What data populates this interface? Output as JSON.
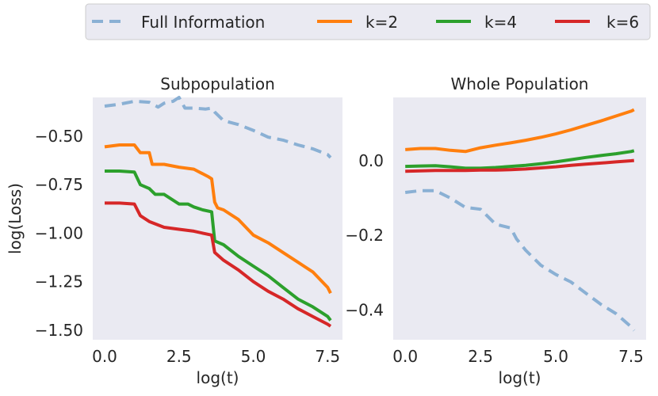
{
  "chart_data": [
    {
      "type": "line",
      "title": "Subpopulation",
      "xlabel": "log(t)",
      "ylabel": "log(Loss)",
      "xlim": [
        -0.4,
        8.0
      ],
      "ylim": [
        -1.55,
        -0.3
      ],
      "xticks": [
        0.0,
        2.5,
        5.0,
        7.5
      ],
      "xtick_labels": [
        "0.0",
        "2.5",
        "5.0",
        "7.5"
      ],
      "yticks": [
        -0.5,
        -0.75,
        -1.0,
        -1.25,
        -1.5
      ],
      "ytick_labels": [
        "−0.50",
        "−0.75",
        "−1.00",
        "−1.25",
        "−1.50"
      ],
      "grid": false,
      "series": [
        {
          "name": "Full Information",
          "color": "#8ab0d4",
          "dash": "dashed",
          "x": [
            0.0,
            0.5,
            1.0,
            1.5,
            1.8,
            2.0,
            2.3,
            2.5,
            2.7,
            3.0,
            3.4,
            3.6,
            3.7,
            4.0,
            4.5,
            5.0,
            5.5,
            6.0,
            6.5,
            7.0,
            7.5,
            7.6
          ],
          "y": [
            -0.345,
            -0.335,
            -0.32,
            -0.325,
            -0.35,
            -0.33,
            -0.32,
            -0.3,
            -0.355,
            -0.355,
            -0.36,
            -0.355,
            -0.375,
            -0.42,
            -0.44,
            -0.47,
            -0.505,
            -0.52,
            -0.545,
            -0.565,
            -0.595,
            -0.61
          ]
        },
        {
          "name": "k=2",
          "color": "#ff7f0e",
          "dash": "solid",
          "x": [
            0.0,
            0.5,
            1.0,
            1.2,
            1.5,
            1.6,
            2.0,
            2.5,
            3.0,
            3.5,
            3.6,
            3.7,
            3.8,
            4.0,
            4.5,
            5.0,
            5.5,
            6.0,
            6.5,
            7.0,
            7.5,
            7.6
          ],
          "y": [
            -0.555,
            -0.545,
            -0.545,
            -0.585,
            -0.585,
            -0.645,
            -0.645,
            -0.66,
            -0.67,
            -0.71,
            -0.72,
            -0.84,
            -0.87,
            -0.88,
            -0.93,
            -1.01,
            -1.05,
            -1.1,
            -1.15,
            -1.2,
            -1.28,
            -1.31
          ]
        },
        {
          "name": "k=4",
          "color": "#2ca02c",
          "dash": "solid",
          "x": [
            0.0,
            0.5,
            1.0,
            1.2,
            1.5,
            1.7,
            2.0,
            2.5,
            2.8,
            3.0,
            3.3,
            3.6,
            3.7,
            4.0,
            4.5,
            5.0,
            5.5,
            6.0,
            6.5,
            7.0,
            7.5,
            7.6
          ],
          "y": [
            -0.68,
            -0.68,
            -0.685,
            -0.75,
            -0.77,
            -0.8,
            -0.8,
            -0.85,
            -0.85,
            -0.865,
            -0.88,
            -0.89,
            -1.04,
            -1.06,
            -1.12,
            -1.17,
            -1.22,
            -1.28,
            -1.34,
            -1.38,
            -1.43,
            -1.45
          ]
        },
        {
          "name": "k=6",
          "color": "#d62728",
          "dash": "solid",
          "x": [
            0.0,
            0.5,
            1.0,
            1.2,
            1.5,
            2.0,
            2.5,
            3.0,
            3.3,
            3.6,
            3.7,
            4.0,
            4.5,
            5.0,
            5.5,
            6.0,
            6.5,
            7.0,
            7.5,
            7.6
          ],
          "y": [
            -0.845,
            -0.845,
            -0.85,
            -0.91,
            -0.94,
            -0.97,
            -0.98,
            -0.99,
            -1.0,
            -1.01,
            -1.1,
            -1.14,
            -1.19,
            -1.25,
            -1.3,
            -1.34,
            -1.39,
            -1.43,
            -1.47,
            -1.48
          ]
        }
      ]
    },
    {
      "type": "line",
      "title": "Whole Population",
      "xlabel": "log(t)",
      "ylabel": "",
      "xlim": [
        -0.4,
        8.0
      ],
      "ylim": [
        -0.48,
        0.17
      ],
      "xticks": [
        0.0,
        2.5,
        5.0,
        7.5
      ],
      "xtick_labels": [
        "0.0",
        "2.5",
        "5.0",
        "7.5"
      ],
      "yticks": [
        0.0,
        -0.2,
        -0.4
      ],
      "ytick_labels": [
        "0.0",
        "−0.2",
        "−0.4"
      ],
      "grid": false,
      "series": [
        {
          "name": "Full Information",
          "color": "#8ab0d4",
          "dash": "dashed",
          "x": [
            0.0,
            0.5,
            1.0,
            1.5,
            2.0,
            2.5,
            3.0,
            3.5,
            3.7,
            4.0,
            4.5,
            5.0,
            5.5,
            6.0,
            6.5,
            7.0,
            7.5,
            7.6
          ],
          "y": [
            -0.085,
            -0.08,
            -0.08,
            -0.1,
            -0.125,
            -0.13,
            -0.17,
            -0.18,
            -0.21,
            -0.24,
            -0.28,
            -0.305,
            -0.325,
            -0.355,
            -0.385,
            -0.41,
            -0.445,
            -0.455
          ]
        },
        {
          "name": "k=2",
          "color": "#ff7f0e",
          "dash": "solid",
          "x": [
            0.0,
            0.5,
            1.0,
            1.5,
            2.0,
            2.5,
            3.0,
            3.5,
            4.0,
            4.5,
            5.0,
            5.5,
            6.0,
            6.5,
            7.0,
            7.5,
            7.6
          ],
          "y": [
            0.03,
            0.033,
            0.033,
            0.028,
            0.025,
            0.035,
            0.042,
            0.048,
            0.055,
            0.063,
            0.072,
            0.083,
            0.095,
            0.107,
            0.12,
            0.133,
            0.137
          ]
        },
        {
          "name": "k=4",
          "color": "#2ca02c",
          "dash": "solid",
          "x": [
            0.0,
            0.5,
            1.0,
            1.5,
            2.0,
            2.5,
            3.0,
            3.5,
            4.0,
            4.5,
            5.0,
            5.5,
            6.0,
            6.5,
            7.0,
            7.5,
            7.6
          ],
          "y": [
            -0.015,
            -0.014,
            -0.013,
            -0.016,
            -0.02,
            -0.02,
            -0.018,
            -0.015,
            -0.012,
            -0.008,
            -0.003,
            0.003,
            0.009,
            0.014,
            0.019,
            0.025,
            0.027
          ]
        },
        {
          "name": "k=6",
          "color": "#d62728",
          "dash": "solid",
          "x": [
            0.0,
            0.5,
            1.0,
            1.5,
            2.0,
            2.5,
            3.0,
            3.5,
            4.0,
            4.5,
            5.0,
            5.5,
            6.0,
            6.5,
            7.0,
            7.5,
            7.6
          ],
          "y": [
            -0.028,
            -0.027,
            -0.026,
            -0.026,
            -0.026,
            -0.025,
            -0.025,
            -0.024,
            -0.022,
            -0.019,
            -0.016,
            -0.012,
            -0.009,
            -0.006,
            -0.003,
            0.0,
            0.001
          ]
        }
      ]
    }
  ],
  "legend": {
    "placement": "top-center",
    "entries": [
      {
        "label": "Full Information",
        "color": "#8ab0d4",
        "dash": "dashed"
      },
      {
        "label": "k=2",
        "color": "#ff7f0e",
        "dash": "solid"
      },
      {
        "label": "k=4",
        "color": "#2ca02c",
        "dash": "solid"
      },
      {
        "label": "k=6",
        "color": "#d62728",
        "dash": "solid"
      }
    ]
  }
}
